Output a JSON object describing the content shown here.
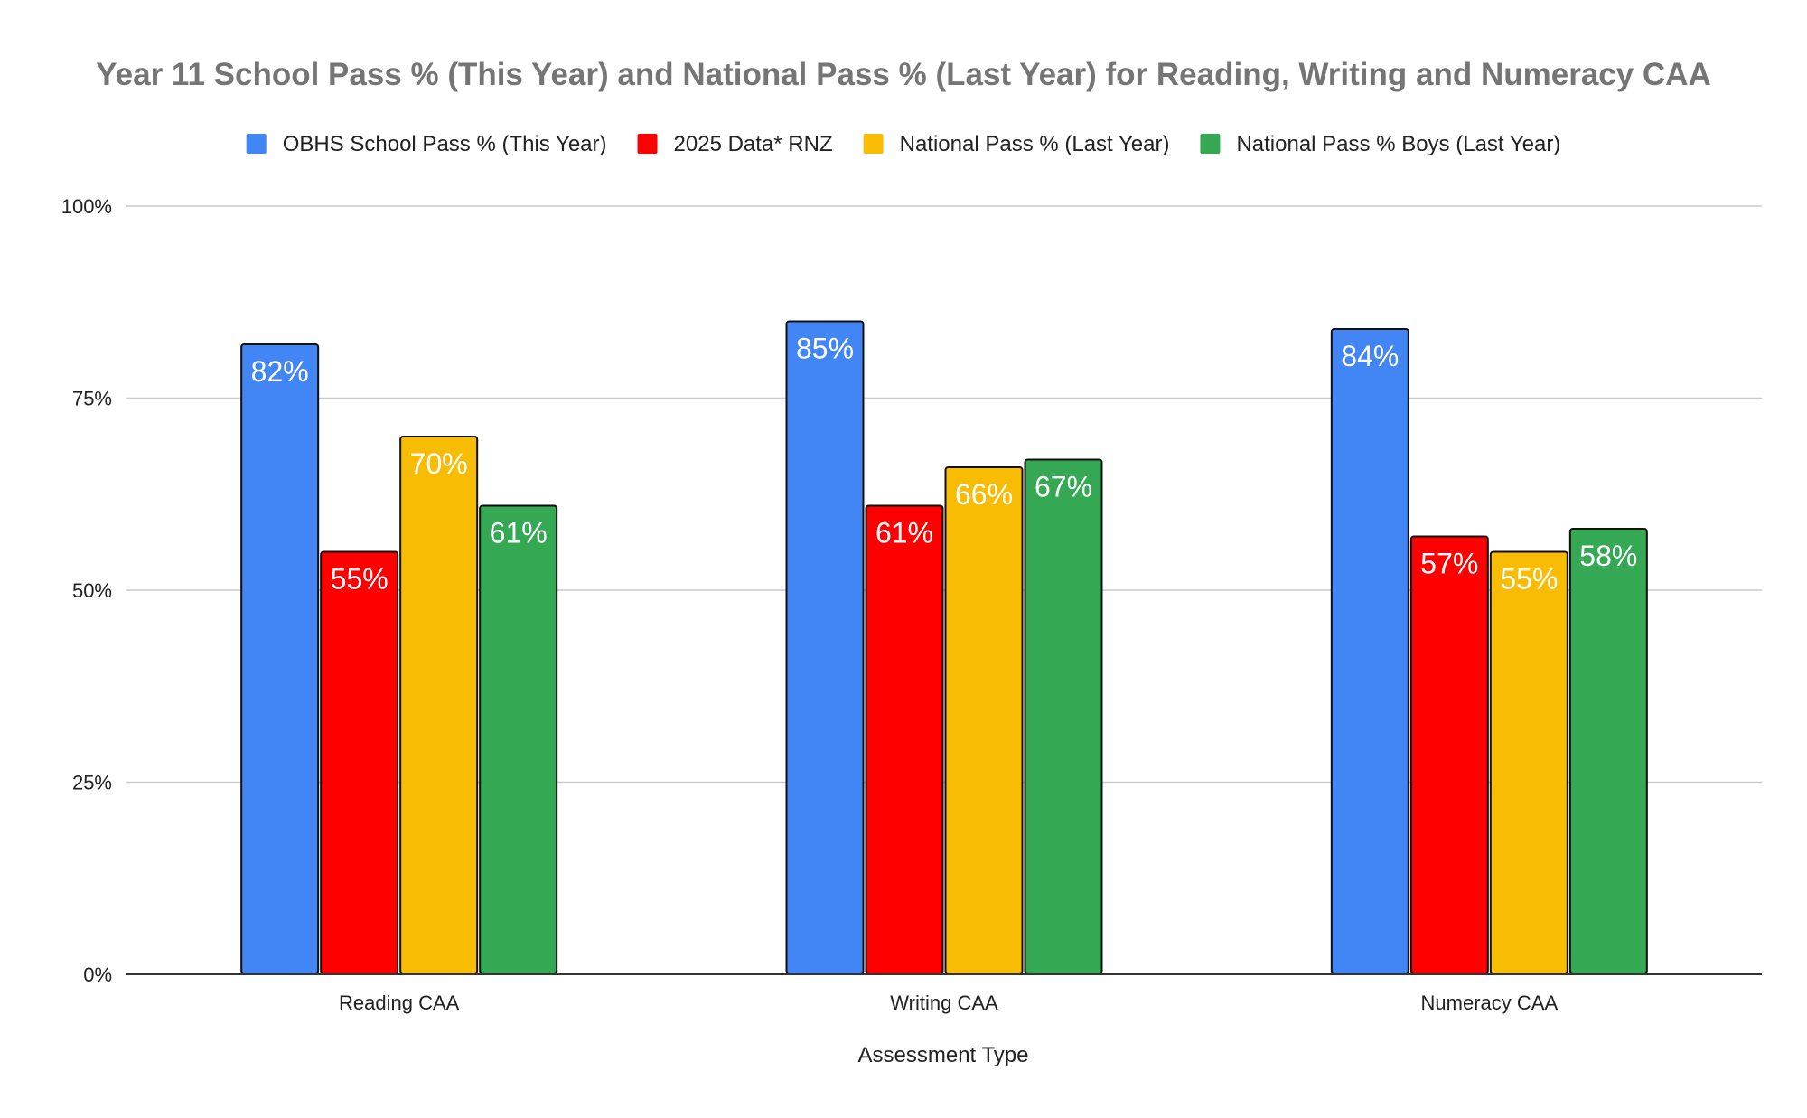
{
  "chart_data": {
    "type": "bar",
    "title": "Year 11 School Pass % (This Year) and National Pass % (Last Year) for Reading, Writing and Numeracy CAA",
    "xlabel": "Assessment Type",
    "ylabel": "",
    "categories": [
      "Reading CAA",
      "Writing CAA",
      "Numeracy CAA"
    ],
    "ylim": [
      0,
      100
    ],
    "yticks": [
      0,
      25,
      50,
      75,
      100
    ],
    "ytick_labels": [
      "0%",
      "25%",
      "50%",
      "75%",
      "100%"
    ],
    "grid": true,
    "legend_position": "top",
    "series": [
      {
        "name": "OBHS School Pass % (This Year)",
        "values": [
          82,
          85,
          84
        ],
        "labels": [
          "82%",
          "85%",
          "84%"
        ],
        "color": "#4285f4"
      },
      {
        "name": "2025 Data* RNZ",
        "values": [
          55,
          61,
          57
        ],
        "labels": [
          "55%",
          "61%",
          "57%"
        ],
        "color": "#ff0000"
      },
      {
        "name": "National Pass % (Last Year)",
        "values": [
          70,
          66,
          55
        ],
        "labels": [
          "70%",
          "66%",
          "55%"
        ],
        "color": "#f9bc05"
      },
      {
        "name": "National Pass % Boys (Last Year)",
        "values": [
          61,
          67,
          58
        ],
        "labels": [
          "61%",
          "67%",
          "58%"
        ],
        "color": "#34a853"
      }
    ]
  }
}
